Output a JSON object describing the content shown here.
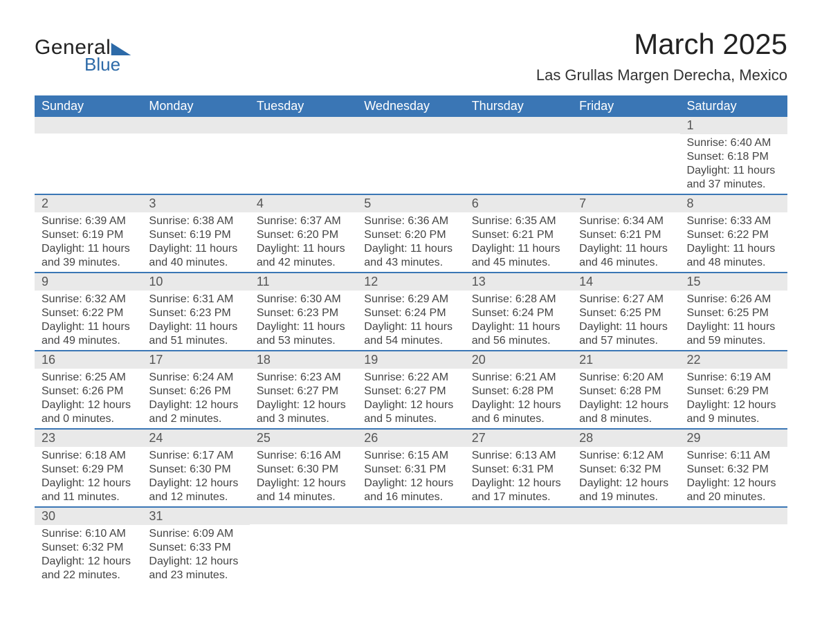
{
  "brand": {
    "part1": "General",
    "part2": "Blue"
  },
  "title": "March 2025",
  "location": "Las Grullas Margen Derecha, Mexico",
  "colors": {
    "header_bg": "#3a76b5",
    "header_text": "#ffffff",
    "row_sep": "#3a76b5",
    "daynum_bg": "#e9e9e9",
    "body_text": "#444444",
    "logo_accent": "#2d6aa8"
  },
  "fonts": {
    "title_pt": 42,
    "location_pt": 22,
    "th_pt": 18,
    "body_pt": 16
  },
  "day_labels": [
    "Sunday",
    "Monday",
    "Tuesday",
    "Wednesday",
    "Thursday",
    "Friday",
    "Saturday"
  ],
  "weeks": [
    [
      null,
      null,
      null,
      null,
      null,
      null,
      {
        "n": "1",
        "sunrise": "Sunrise: 6:40 AM",
        "sunset": "Sunset: 6:18 PM",
        "day": "Daylight: 11 hours and 37 minutes."
      }
    ],
    [
      {
        "n": "2",
        "sunrise": "Sunrise: 6:39 AM",
        "sunset": "Sunset: 6:19 PM",
        "day": "Daylight: 11 hours and 39 minutes."
      },
      {
        "n": "3",
        "sunrise": "Sunrise: 6:38 AM",
        "sunset": "Sunset: 6:19 PM",
        "day": "Daylight: 11 hours and 40 minutes."
      },
      {
        "n": "4",
        "sunrise": "Sunrise: 6:37 AM",
        "sunset": "Sunset: 6:20 PM",
        "day": "Daylight: 11 hours and 42 minutes."
      },
      {
        "n": "5",
        "sunrise": "Sunrise: 6:36 AM",
        "sunset": "Sunset: 6:20 PM",
        "day": "Daylight: 11 hours and 43 minutes."
      },
      {
        "n": "6",
        "sunrise": "Sunrise: 6:35 AM",
        "sunset": "Sunset: 6:21 PM",
        "day": "Daylight: 11 hours and 45 minutes."
      },
      {
        "n": "7",
        "sunrise": "Sunrise: 6:34 AM",
        "sunset": "Sunset: 6:21 PM",
        "day": "Daylight: 11 hours and 46 minutes."
      },
      {
        "n": "8",
        "sunrise": "Sunrise: 6:33 AM",
        "sunset": "Sunset: 6:22 PM",
        "day": "Daylight: 11 hours and 48 minutes."
      }
    ],
    [
      {
        "n": "9",
        "sunrise": "Sunrise: 6:32 AM",
        "sunset": "Sunset: 6:22 PM",
        "day": "Daylight: 11 hours and 49 minutes."
      },
      {
        "n": "10",
        "sunrise": "Sunrise: 6:31 AM",
        "sunset": "Sunset: 6:23 PM",
        "day": "Daylight: 11 hours and 51 minutes."
      },
      {
        "n": "11",
        "sunrise": "Sunrise: 6:30 AM",
        "sunset": "Sunset: 6:23 PM",
        "day": "Daylight: 11 hours and 53 minutes."
      },
      {
        "n": "12",
        "sunrise": "Sunrise: 6:29 AM",
        "sunset": "Sunset: 6:24 PM",
        "day": "Daylight: 11 hours and 54 minutes."
      },
      {
        "n": "13",
        "sunrise": "Sunrise: 6:28 AM",
        "sunset": "Sunset: 6:24 PM",
        "day": "Daylight: 11 hours and 56 minutes."
      },
      {
        "n": "14",
        "sunrise": "Sunrise: 6:27 AM",
        "sunset": "Sunset: 6:25 PM",
        "day": "Daylight: 11 hours and 57 minutes."
      },
      {
        "n": "15",
        "sunrise": "Sunrise: 6:26 AM",
        "sunset": "Sunset: 6:25 PM",
        "day": "Daylight: 11 hours and 59 minutes."
      }
    ],
    [
      {
        "n": "16",
        "sunrise": "Sunrise: 6:25 AM",
        "sunset": "Sunset: 6:26 PM",
        "day": "Daylight: 12 hours and 0 minutes."
      },
      {
        "n": "17",
        "sunrise": "Sunrise: 6:24 AM",
        "sunset": "Sunset: 6:26 PM",
        "day": "Daylight: 12 hours and 2 minutes."
      },
      {
        "n": "18",
        "sunrise": "Sunrise: 6:23 AM",
        "sunset": "Sunset: 6:27 PM",
        "day": "Daylight: 12 hours and 3 minutes."
      },
      {
        "n": "19",
        "sunrise": "Sunrise: 6:22 AM",
        "sunset": "Sunset: 6:27 PM",
        "day": "Daylight: 12 hours and 5 minutes."
      },
      {
        "n": "20",
        "sunrise": "Sunrise: 6:21 AM",
        "sunset": "Sunset: 6:28 PM",
        "day": "Daylight: 12 hours and 6 minutes."
      },
      {
        "n": "21",
        "sunrise": "Sunrise: 6:20 AM",
        "sunset": "Sunset: 6:28 PM",
        "day": "Daylight: 12 hours and 8 minutes."
      },
      {
        "n": "22",
        "sunrise": "Sunrise: 6:19 AM",
        "sunset": "Sunset: 6:29 PM",
        "day": "Daylight: 12 hours and 9 minutes."
      }
    ],
    [
      {
        "n": "23",
        "sunrise": "Sunrise: 6:18 AM",
        "sunset": "Sunset: 6:29 PM",
        "day": "Daylight: 12 hours and 11 minutes."
      },
      {
        "n": "24",
        "sunrise": "Sunrise: 6:17 AM",
        "sunset": "Sunset: 6:30 PM",
        "day": "Daylight: 12 hours and 12 minutes."
      },
      {
        "n": "25",
        "sunrise": "Sunrise: 6:16 AM",
        "sunset": "Sunset: 6:30 PM",
        "day": "Daylight: 12 hours and 14 minutes."
      },
      {
        "n": "26",
        "sunrise": "Sunrise: 6:15 AM",
        "sunset": "Sunset: 6:31 PM",
        "day": "Daylight: 12 hours and 16 minutes."
      },
      {
        "n": "27",
        "sunrise": "Sunrise: 6:13 AM",
        "sunset": "Sunset: 6:31 PM",
        "day": "Daylight: 12 hours and 17 minutes."
      },
      {
        "n": "28",
        "sunrise": "Sunrise: 6:12 AM",
        "sunset": "Sunset: 6:32 PM",
        "day": "Daylight: 12 hours and 19 minutes."
      },
      {
        "n": "29",
        "sunrise": "Sunrise: 6:11 AM",
        "sunset": "Sunset: 6:32 PM",
        "day": "Daylight: 12 hours and 20 minutes."
      }
    ],
    [
      {
        "n": "30",
        "sunrise": "Sunrise: 6:10 AM",
        "sunset": "Sunset: 6:32 PM",
        "day": "Daylight: 12 hours and 22 minutes."
      },
      {
        "n": "31",
        "sunrise": "Sunrise: 6:09 AM",
        "sunset": "Sunset: 6:33 PM",
        "day": "Daylight: 12 hours and 23 minutes."
      },
      null,
      null,
      null,
      null,
      null
    ]
  ]
}
